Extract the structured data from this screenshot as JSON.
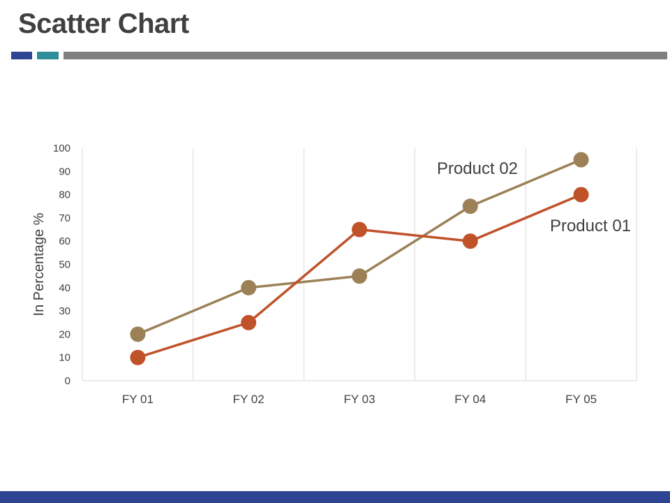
{
  "slide": {
    "title": "Scatter Chart"
  },
  "colors": {
    "title_text": "#404040",
    "accent_blue": "#2E4593",
    "accent_teal": "#2E8E9A",
    "accent_gray": "#808080",
    "footer": "#2E4593",
    "product_01": "#C0522A",
    "product_02": "#9C8157",
    "gridline": "#D9D9D9",
    "axis_text": "#404040"
  },
  "chart_data": {
    "type": "line",
    "title": "",
    "xlabel": "",
    "ylabel": "In Percentage %",
    "categories": [
      "FY 01",
      "FY 02",
      "FY 03",
      "FY 04",
      "FY 05"
    ],
    "ylim": [
      0,
      100
    ],
    "yticks": [
      0,
      10,
      20,
      30,
      40,
      50,
      60,
      70,
      80,
      90,
      100
    ],
    "grid": "vertical",
    "legend": "none",
    "series": [
      {
        "name": "Product 01",
        "color": "#C0522A",
        "values": [
          10,
          25,
          65,
          60,
          80
        ]
      },
      {
        "name": "Product 02",
        "color": "#9C8157",
        "values": [
          20,
          40,
          45,
          75,
          95
        ]
      }
    ]
  }
}
